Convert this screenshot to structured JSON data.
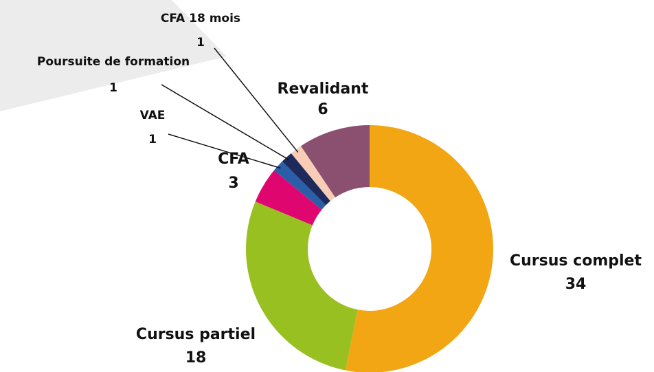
{
  "chart_data": {
    "type": "pie",
    "donut": true,
    "categories": [
      "Cursus complet",
      "Cursus partiel",
      "CFA",
      "VAE",
      "Poursuite de formation",
      "CFA 18 mois",
      "Revalidant"
    ],
    "values": [
      34,
      18,
      3,
      1,
      1,
      1,
      6
    ],
    "colors": [
      "#f2a614",
      "#97c020",
      "#e0066f",
      "#2c5ea8",
      "#1f2a5c",
      "#f9cdb5",
      "#8b5070"
    ]
  }
}
